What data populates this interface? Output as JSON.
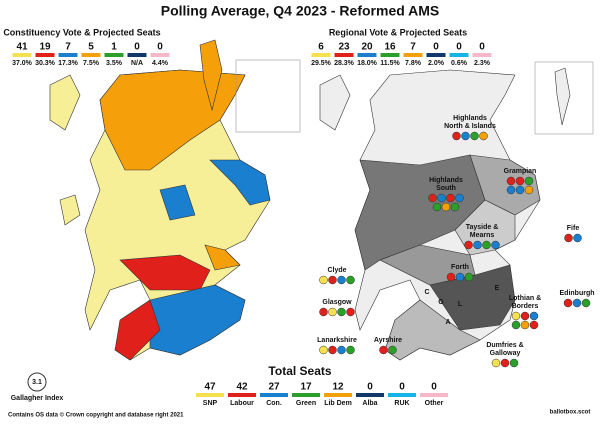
{
  "title": "Polling Average, Q4 2023 - Reformed AMS",
  "constituency": {
    "heading": "Constituency Vote & Projected Seats",
    "parties": [
      {
        "seats": 41,
        "vote": "37.0%",
        "color": "#f5e050"
      },
      {
        "seats": 19,
        "vote": "30.3%",
        "color": "#e0201b"
      },
      {
        "seats": 7,
        "vote": "17.3%",
        "color": "#1b7fd0"
      },
      {
        "seats": 5,
        "vote": "7.5%",
        "color": "#f5a00a"
      },
      {
        "seats": 1,
        "vote": "3.5%",
        "color": "#2aa02a"
      },
      {
        "seats": 0,
        "vote": "N/A",
        "color": "#12386a"
      },
      {
        "seats": 0,
        "vote": "4.4%",
        "color": "#f5b8c8"
      }
    ]
  },
  "regional": {
    "heading": "Regional Vote & Projected Seats",
    "parties": [
      {
        "seats": 6,
        "vote": "29.5%",
        "color": "#f5e050"
      },
      {
        "seats": 23,
        "vote": "28.3%",
        "color": "#e0201b"
      },
      {
        "seats": 20,
        "vote": "18.0%",
        "color": "#1b7fd0"
      },
      {
        "seats": 16,
        "vote": "11.5%",
        "color": "#2aa02a"
      },
      {
        "seats": 7,
        "vote": "7.8%",
        "color": "#f5a00a"
      },
      {
        "seats": 0,
        "vote": "2.0%",
        "color": "#12386a"
      },
      {
        "seats": 0,
        "vote": "0.6%",
        "color": "#14b4e6"
      },
      {
        "seats": 0,
        "vote": "2.3%",
        "color": "#f5b8c8"
      }
    ]
  },
  "regions": [
    {
      "label": [
        "Highlands",
        "North & Islands"
      ],
      "seats": [
        "#e0201b",
        "#1b7fd0",
        "#2aa02a",
        "#f5a00a"
      ]
    },
    {
      "label": [
        "Grampian"
      ],
      "seats": [
        "#e0201b",
        "#e0201b",
        "#2aa02a",
        "#1b7fd0",
        "#1b7fd0",
        "#f5a00a"
      ]
    },
    {
      "label": [
        "Highlands",
        "South"
      ],
      "seats": [
        "#e0201b",
        "#1b7fd0",
        "#e0201b",
        "#1b7fd0",
        "#2aa02a",
        "#f5a00a",
        "#2aa02a"
      ]
    },
    {
      "label": [
        "Tayside &",
        "Mearns"
      ],
      "seats": [
        "#e0201b",
        "#1b7fd0",
        "#2aa02a",
        "#1b7fd0"
      ]
    },
    {
      "label": [
        "Fife"
      ],
      "seats": [
        "#e0201b",
        "#1b7fd0"
      ]
    },
    {
      "label": [
        "Forth"
      ],
      "seats": [
        "#e0201b",
        "#1b7fd0",
        "#2aa02a"
      ]
    },
    {
      "label": [
        "Clyde"
      ],
      "seats": [
        "#f5e050",
        "#e0201b",
        "#1b7fd0",
        "#2aa02a"
      ]
    },
    {
      "label": [
        "Glasgow"
      ],
      "seats": [
        "#e0201b",
        "#f5e050",
        "#2aa02a",
        "#e0201b"
      ]
    },
    {
      "label": [
        "Edinburgh"
      ],
      "seats": [
        "#e0201b",
        "#1b7fd0",
        "#2aa02a"
      ]
    },
    {
      "label": [
        "Lanarkshire"
      ],
      "seats": [
        "#f5e050",
        "#e0201b",
        "#1b7fd0",
        "#2aa02a"
      ]
    },
    {
      "label": [
        "Ayrshire"
      ],
      "seats": [
        "#e0201b",
        "#2aa02a"
      ]
    },
    {
      "label": [
        "Lothian &",
        "Borders"
      ],
      "seats": [
        "#f5e050",
        "#e0201b",
        "#1b7fd0",
        "#2aa02a",
        "#f5a00a",
        "#e0201b"
      ]
    },
    {
      "label": [
        "Dumfries &",
        "Galloway"
      ],
      "seats": [
        "#f5e050",
        "#e0201b",
        "#2aa02a"
      ]
    }
  ],
  "map_letters": [
    "C",
    "G",
    "L",
    "E",
    "A"
  ],
  "totals": {
    "heading": "Total Seats",
    "parties": [
      {
        "seats": 47,
        "name": "SNP",
        "color": "#f5e050"
      },
      {
        "seats": 42,
        "name": "Labour",
        "color": "#e0201b"
      },
      {
        "seats": 27,
        "name": "Con.",
        "color": "#1b7fd0"
      },
      {
        "seats": 17,
        "name": "Green",
        "color": "#2aa02a"
      },
      {
        "seats": 12,
        "name": "Lib Dem",
        "color": "#f5a00a"
      },
      {
        "seats": 0,
        "name": "Alba",
        "color": "#12386a"
      },
      {
        "seats": 0,
        "name": "RUK",
        "color": "#14b4e6"
      },
      {
        "seats": 0,
        "name": "Other",
        "color": "#f5b8c8"
      }
    ]
  },
  "gallagher": {
    "value": "3.1",
    "label": "Gallagher Index"
  },
  "footer": "Contains OS data © Crown copyright and database right 2021",
  "brand": "ballotbox.scot"
}
